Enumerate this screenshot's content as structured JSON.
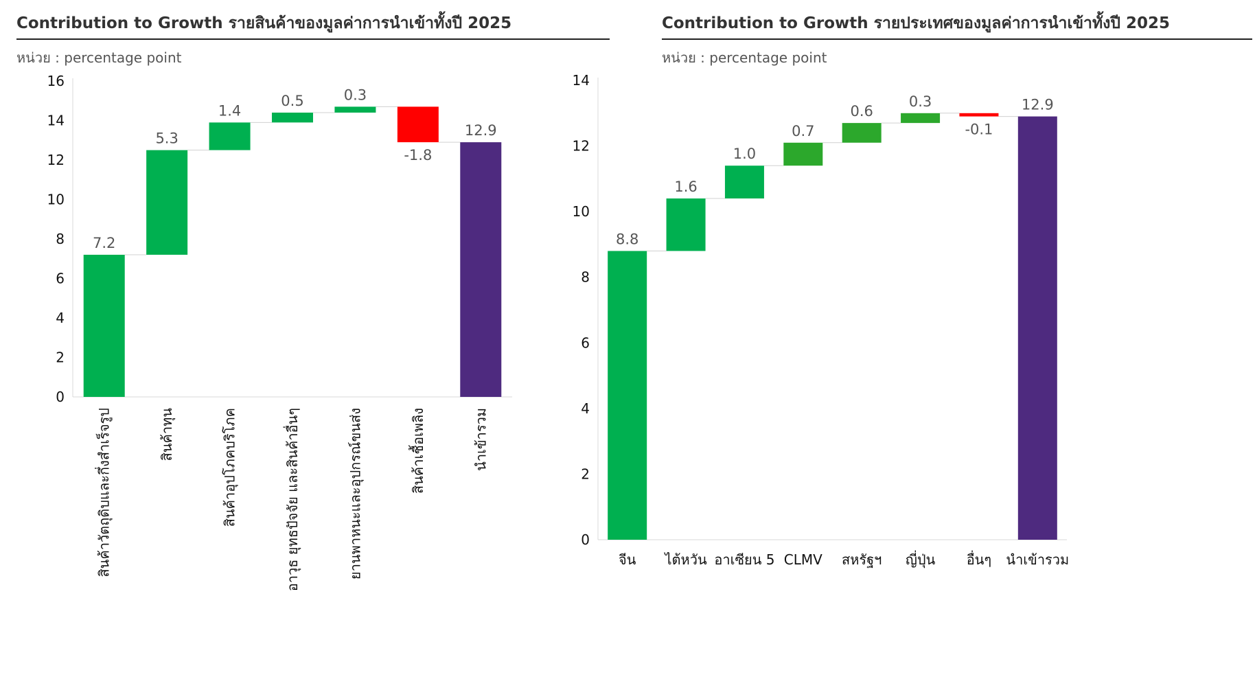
{
  "chart_data": [
    {
      "type": "waterfall",
      "title": "Contribution to Growth รายสินค้าของมูลค่าการนำเข้าทั้งปี 2025",
      "subtitle": "หน่วย : percentage point",
      "categories": [
        "สินค้าวัตถุดิบและกึ่งสำเร็จรูป",
        "สินค้าทุน",
        "สินค้าอุปโภคบริโภค",
        "อาวุธ ยุทธปัจจัย และสินค้าอื่นๆ",
        "ยานพาหนะและอุปกรณ์ขนส่ง",
        "สินค้าเชื้อเพลิง",
        "นำเข้ารวม"
      ],
      "values": [
        7.2,
        5.3,
        1.4,
        0.5,
        0.3,
        -1.8,
        12.9
      ],
      "value_labels": [
        "7.2",
        "5.3",
        "1.4",
        "0.5",
        "0.3",
        "-1.8",
        "12.9"
      ],
      "is_total": [
        false,
        false,
        false,
        false,
        false,
        false,
        true
      ],
      "y_ticks": [
        "0",
        "2",
        "4",
        "6",
        "8",
        "10",
        "12",
        "14",
        "16"
      ],
      "ylim": [
        0,
        16
      ],
      "x_label_orientation": "vertical",
      "colors": {
        "increase": "#00b050",
        "decrease": "#ff0000",
        "total": "#4e2a7f"
      }
    },
    {
      "type": "waterfall",
      "title": "Contribution to Growth รายประเทศของมูลค่าการนำเข้าทั้งปี 2025",
      "subtitle": "หน่วย : percentage point",
      "categories": [
        "จีน",
        "ไต้หวัน",
        "อาเซียน 5",
        "CLMV",
        "สหรัฐฯ",
        "ญี่ปุ่น",
        "อื่นๆ",
        "นำเข้ารวม"
      ],
      "values": [
        8.8,
        1.6,
        1.0,
        0.7,
        0.6,
        0.3,
        -0.1,
        12.9
      ],
      "value_labels": [
        "8.8",
        "1.6",
        "1.0",
        "0.7",
        "0.6",
        "0.3",
        "-0.1",
        "12.9"
      ],
      "is_total": [
        false,
        false,
        false,
        false,
        false,
        false,
        false,
        true
      ],
      "y_ticks": [
        "0",
        "2",
        "4",
        "6",
        "8",
        "10",
        "12",
        "14"
      ],
      "ylim": [
        0,
        14
      ],
      "x_label_orientation": "horizontal",
      "colors": {
        "increase": "#00b050",
        "increase_small": "#2ca82c",
        "decrease": "#ff0000",
        "total": "#4e2a7f"
      }
    }
  ]
}
